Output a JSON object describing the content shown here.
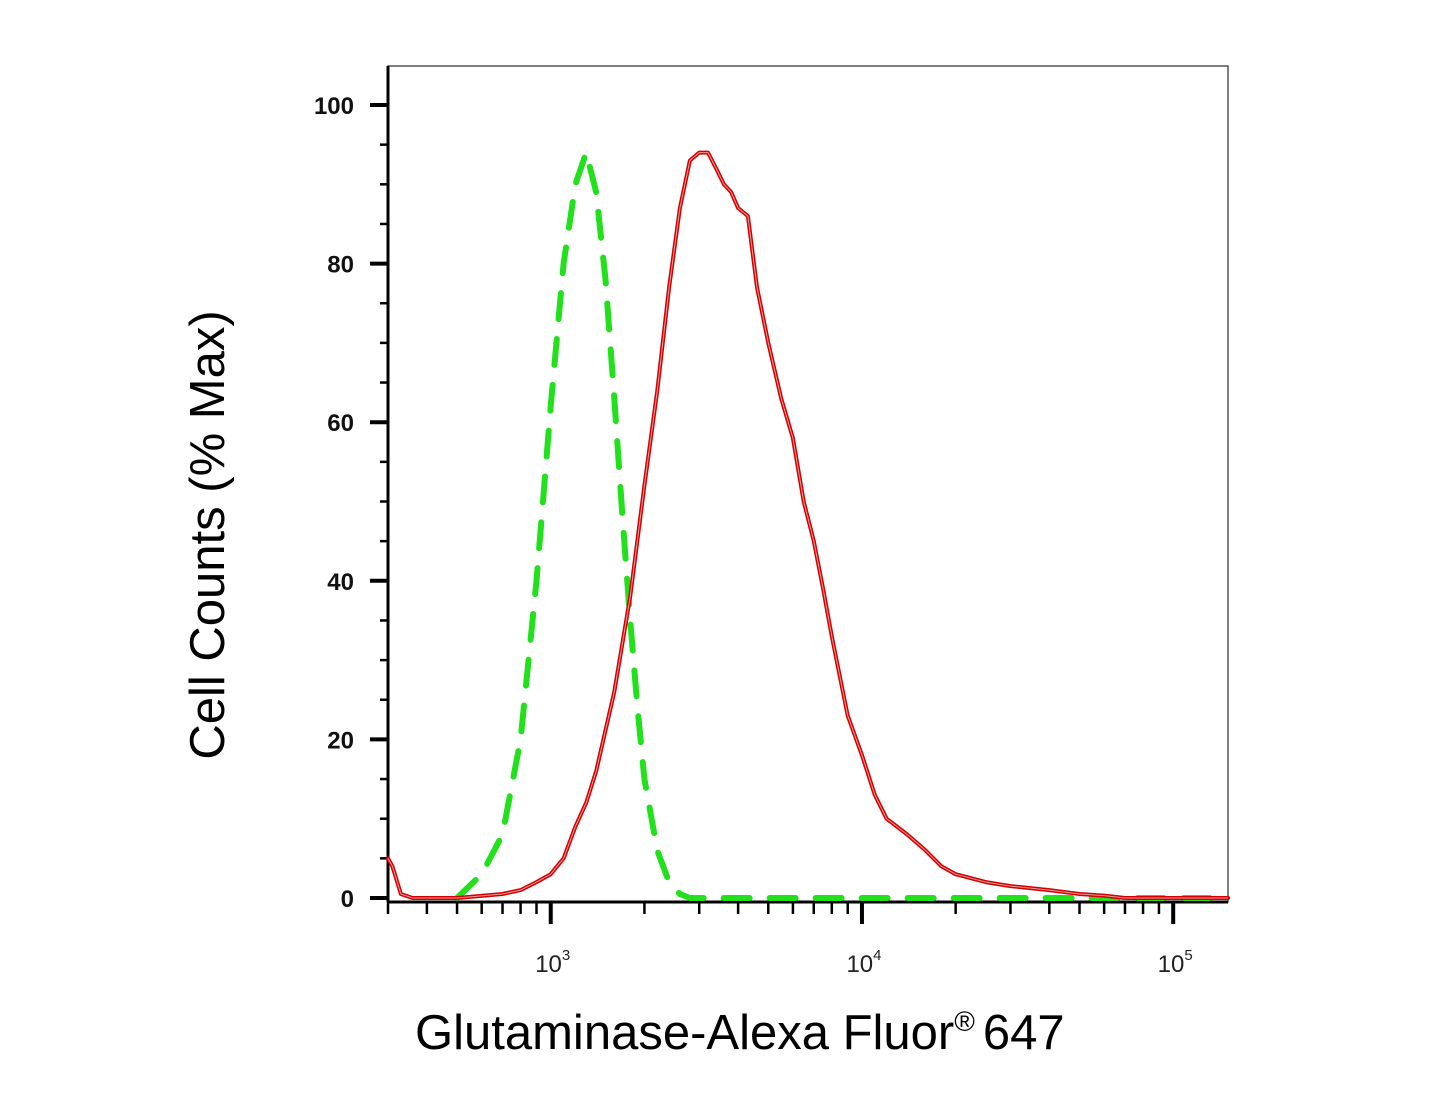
{
  "chart_data": {
    "type": "line",
    "title": "",
    "xlabel": "Glutaminase-Alexa Fluor",
    "xlabel_registered": "®",
    "xlabel_suffix": "647",
    "ylabel": "Cell Counts (% Max)",
    "x_scale": "log",
    "xlim": [
      300,
      150000
    ],
    "ylim": [
      0,
      105
    ],
    "x_ticks": [
      {
        "base": "10",
        "exp": "3",
        "value": 1000
      },
      {
        "base": "10",
        "exp": "4",
        "value": 10000
      },
      {
        "base": "10",
        "exp": "5",
        "value": 100000
      }
    ],
    "y_ticks": [
      0,
      20,
      40,
      60,
      80,
      100
    ],
    "grid": false,
    "series": [
      {
        "style": "dashed",
        "color": "#22e01c",
        "x": [
          500,
          600,
          700,
          800,
          900,
          1000,
          1100,
          1200,
          1300,
          1400,
          1500,
          1600,
          1700,
          1800,
          1900,
          2000,
          2200,
          2400,
          2600,
          2800,
          3000,
          3500,
          5000,
          10000,
          50000,
          150000
        ],
        "y": [
          0,
          3,
          8,
          20,
          40,
          62,
          80,
          90,
          94,
          89,
          78,
          63,
          48,
          35,
          24,
          15,
          6,
          2,
          0.5,
          0,
          0,
          0,
          0,
          0,
          0,
          0
        ]
      },
      {
        "style": "solid",
        "color": "#d40000",
        "x": [
          300,
          310,
          330,
          360,
          400,
          500,
          700,
          800,
          900,
          1000,
          1100,
          1200,
          1300,
          1400,
          1600,
          1800,
          2000,
          2200,
          2400,
          2600,
          2800,
          3000,
          3200,
          3400,
          3600,
          3800,
          4000,
          4300,
          4600,
          5000,
          5500,
          6000,
          6500,
          7000,
          7500,
          8000,
          9000,
          10000,
          11000,
          12000,
          14000,
          16000,
          18000,
          20000,
          25000,
          30000,
          40000,
          50000,
          60000,
          70000,
          80000,
          90000,
          100000,
          150000
        ],
        "y": [
          5,
          4,
          0.5,
          0,
          0,
          0,
          0.5,
          1,
          2,
          3,
          5,
          9,
          12,
          16,
          26,
          38,
          52,
          64,
          77,
          87,
          93,
          94,
          94,
          92,
          90,
          89,
          87,
          86,
          77,
          70,
          63,
          58,
          50,
          45,
          39,
          33,
          23,
          18,
          13,
          10,
          8,
          6,
          4,
          3,
          2,
          1.5,
          1,
          0.5,
          0.3,
          0,
          0,
          0,
          0,
          0
        ]
      }
    ]
  }
}
